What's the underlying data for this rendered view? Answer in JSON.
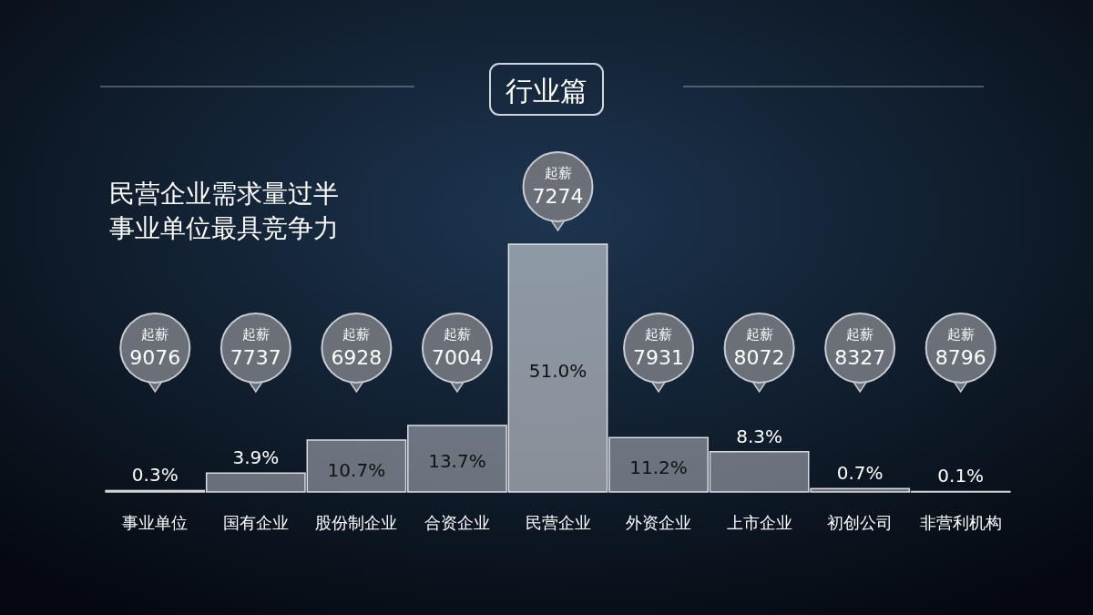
{
  "chart_data": {
    "type": "bar",
    "title": "行业篇",
    "subtitle": "民营企业需求量过半事业单位最具竞争力",
    "categories": [
      "事业单位",
      "国有企业",
      "股份制企业",
      "合资企业",
      "民营企业",
      "外资企业",
      "上市企业",
      "初创公司",
      "非营利机构"
    ],
    "values": [
      0.3,
      3.9,
      10.7,
      13.7,
      51.0,
      11.2,
      8.3,
      0.7,
      0.1
    ],
    "value_labels": [
      "0.3%",
      "3.9%",
      "10.7%",
      "13.7%",
      "51.0%",
      "11.2%",
      "8.3%",
      "0.7%",
      "0.1%"
    ],
    "colors": [
      "#b8bcc4",
      "#b8bcc4",
      "#b8bcc4",
      "#b8bcc4",
      "#eceef2",
      "#b8bcc4",
      "#b8bcc4",
      "#b8bcc4",
      "#b8bcc4"
    ],
    "annotations": [
      "起薪\n9076",
      "起薪\n7737",
      "起薪\n6928",
      "起薪\n7004",
      "起薪\n7274",
      "起薪\n7931",
      "起薪\n8072",
      "起薪\n8327",
      "起薪\n8796"
    ]
  }
}
